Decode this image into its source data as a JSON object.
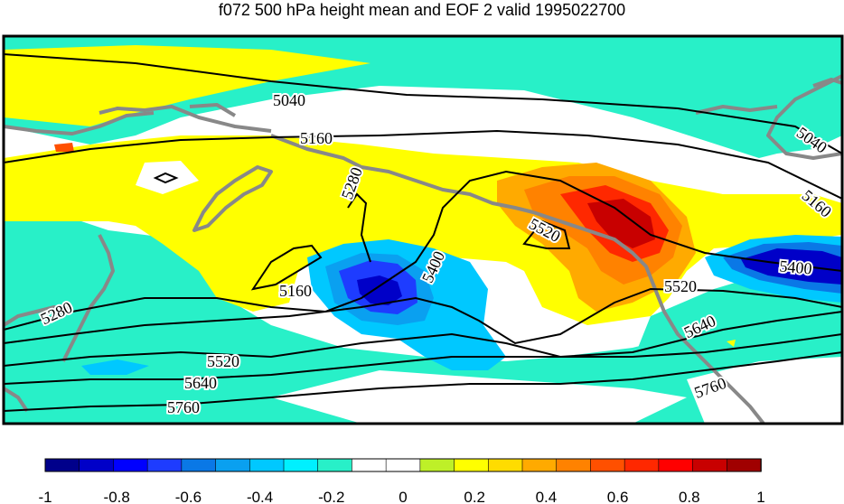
{
  "title": "f072 500 hPa height mean and EOF 2 valid 1995022700",
  "contour_labels": [
    "5040",
    "5160",
    "5040",
    "5280",
    "5160",
    "5520",
    "5400",
    "5160",
    "5280",
    "5400",
    "5520",
    "5520",
    "5640",
    "5640",
    "5760",
    "5760"
  ],
  "colorbar": {
    "ticks": [
      "-1",
      "-0.8",
      "-0.6",
      "-0.4",
      "-0.2",
      "0",
      "0.2",
      "0.4",
      "0.6",
      "0.8",
      "1"
    ],
    "colors": [
      "#00008b",
      "#0000c8",
      "#0000ff",
      "#1e3cff",
      "#0a78e6",
      "#0aa0f0",
      "#00c8ff",
      "#00f0ff",
      "#28f0c8",
      "#ffffff",
      "#ffffff",
      "#bef028",
      "#ffff00",
      "#ffdc00",
      "#ffaa00",
      "#ff8200",
      "#ff5000",
      "#ff2800",
      "#ff0000",
      "#c80000",
      "#a00000"
    ]
  },
  "colors": {
    "land_outline": "#888888",
    "contour": "#000000",
    "frame": "#000000"
  }
}
